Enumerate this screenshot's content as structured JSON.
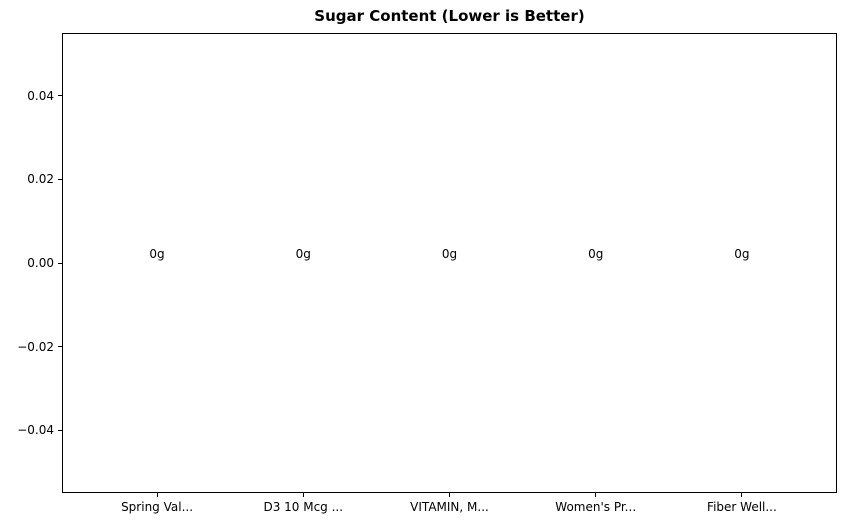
{
  "chart_data": {
    "type": "bar",
    "title": "Sugar Content (Lower is Better)",
    "categories": [
      "Spring Val...",
      "D3 10 Mcg ...",
      "VITAMIN, M...",
      "Women's Pr...",
      "Fiber Well..."
    ],
    "values": [
      0,
      0,
      0,
      0,
      0
    ],
    "bar_labels": [
      "0g",
      "0g",
      "0g",
      "0g",
      "0g"
    ],
    "xlabel": "",
    "ylabel": "",
    "ylim": [
      -0.055,
      0.055
    ],
    "xlim_units": [
      -0.65,
      4.65
    ],
    "yticks": [
      {
        "value": 0.04,
        "label": "0.04"
      },
      {
        "value": 0.02,
        "label": "0.02"
      },
      {
        "value": 0.0,
        "label": "0.00"
      },
      {
        "value": -0.02,
        "label": "−0.02"
      },
      {
        "value": -0.04,
        "label": "−0.04"
      }
    ],
    "grid": false,
    "legend": null,
    "bar_width_units": 0.8,
    "colors": {
      "text": "#000000",
      "spine": "#000000",
      "background": "#ffffff",
      "bar": "#1f77b4"
    }
  }
}
